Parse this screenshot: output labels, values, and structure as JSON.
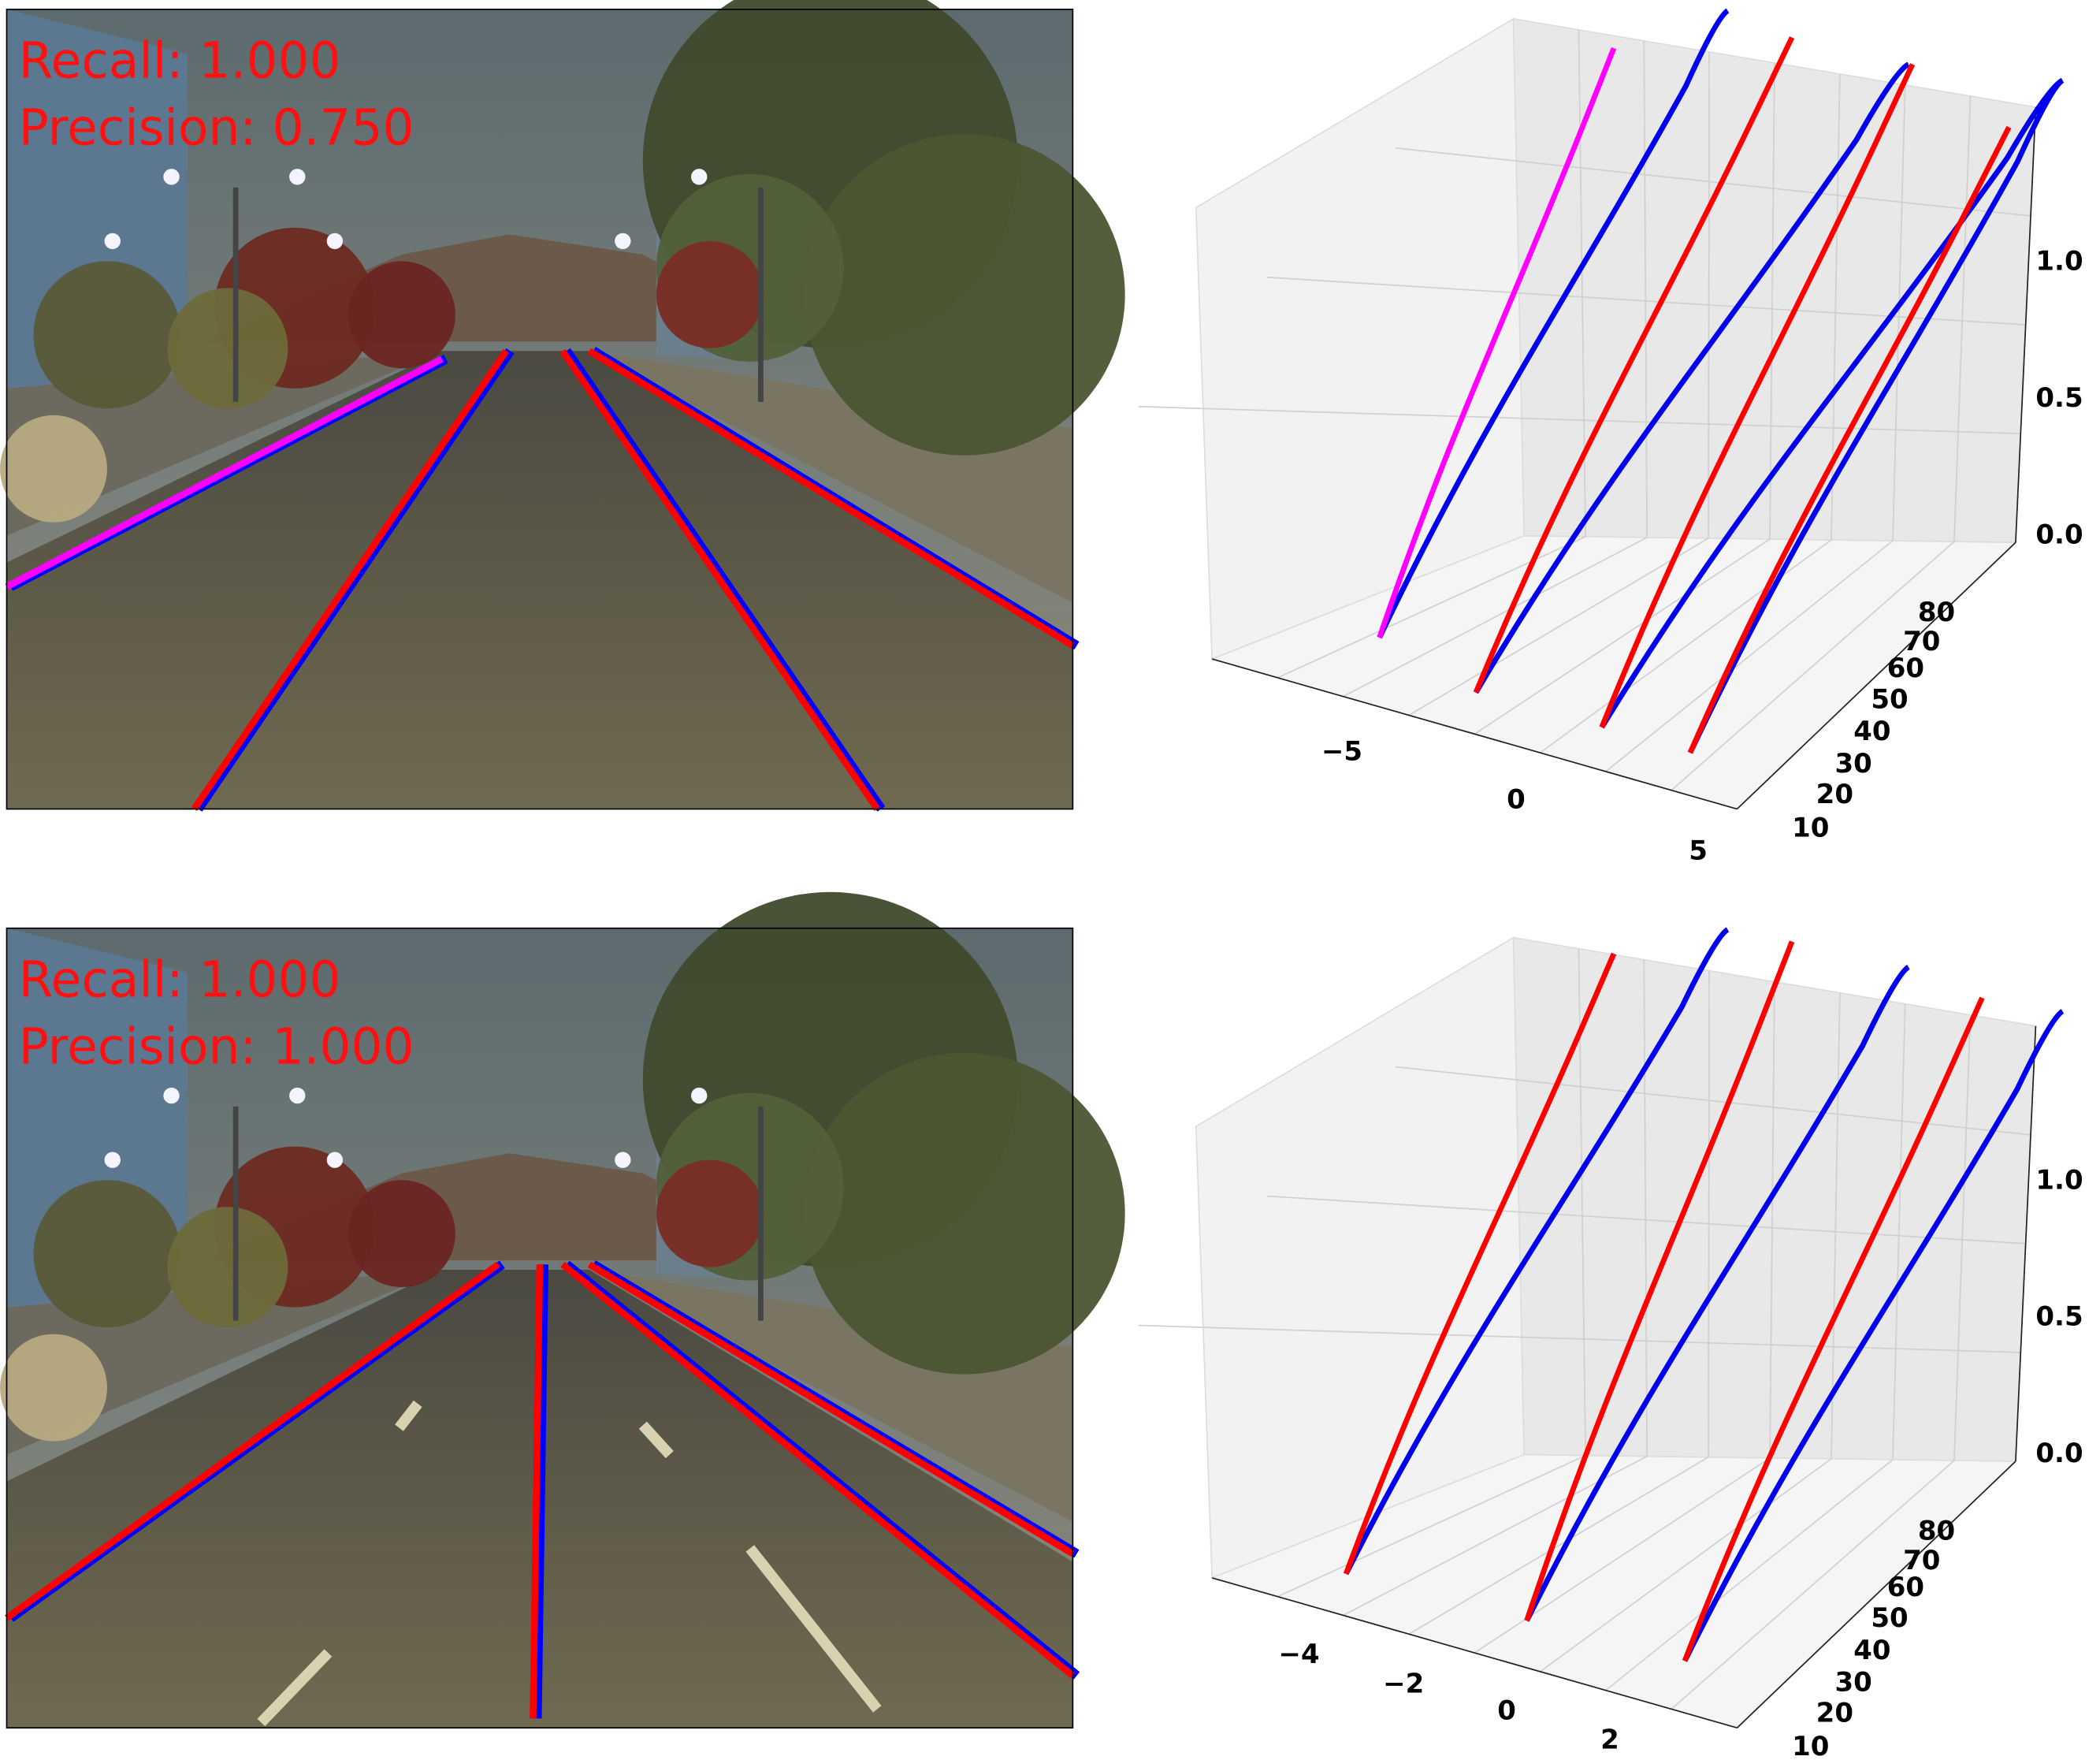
{
  "panels": [
    {
      "image": {
        "recall": "Recall: 1.000",
        "precision": "Precision: 0.750"
      },
      "plot": {
        "x_ticks": [
          "−5",
          "0",
          "5"
        ],
        "y_ticks": [
          "10",
          "20",
          "30",
          "40",
          "50",
          "60",
          "70",
          "80"
        ],
        "z_ticks": [
          "0.0",
          "0.5",
          "1.0"
        ]
      }
    },
    {
      "image": {
        "recall": "Recall: 1.000",
        "precision": "Precision: 1.000"
      },
      "plot": {
        "x_ticks": [
          "−4",
          "−2",
          "0",
          "2"
        ],
        "y_ticks": [
          "10",
          "20",
          "30",
          "40",
          "50",
          "60",
          "70",
          "80"
        ],
        "z_ticks": [
          "0.0",
          "0.5",
          "1.0"
        ]
      }
    }
  ]
}
